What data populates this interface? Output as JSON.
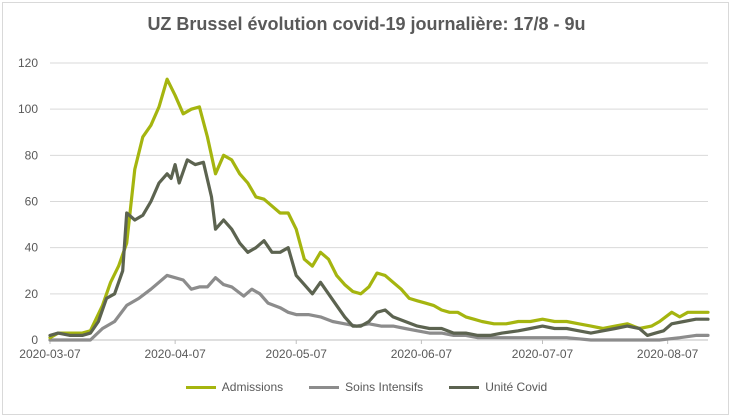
{
  "chart_data": {
    "type": "line",
    "title": "UZ Brussel évolution covid-19 journalière: 17/8 - 9u",
    "xlabel": "",
    "ylabel": "",
    "ylim": [
      0,
      120
    ],
    "yticks": [
      0,
      20,
      40,
      60,
      80,
      100,
      120
    ],
    "xlim": [
      "2020-03-07",
      "2020-08-17"
    ],
    "xtick_labels": [
      "2020-03-07",
      "2020-04-07",
      "2020-05-07",
      "2020-06-07",
      "2020-07-07",
      "2020-08-07"
    ],
    "grid": "horizontal",
    "legend_position": "bottom",
    "series": [
      {
        "name": "Admissions",
        "color": "#a5b50f",
        "points": [
          [
            "2020-03-07",
            1
          ],
          [
            "2020-03-09",
            3
          ],
          [
            "2020-03-12",
            3
          ],
          [
            "2020-03-15",
            3
          ],
          [
            "2020-03-17",
            4
          ],
          [
            "2020-03-20",
            15
          ],
          [
            "2020-03-22",
            25
          ],
          [
            "2020-03-24",
            32
          ],
          [
            "2020-03-26",
            42
          ],
          [
            "2020-03-28",
            74
          ],
          [
            "2020-03-30",
            88
          ],
          [
            "2020-04-01",
            93
          ],
          [
            "2020-04-03",
            101
          ],
          [
            "2020-04-05",
            113
          ],
          [
            "2020-04-07",
            106
          ],
          [
            "2020-04-09",
            98
          ],
          [
            "2020-04-11",
            100
          ],
          [
            "2020-04-13",
            101
          ],
          [
            "2020-04-15",
            88
          ],
          [
            "2020-04-17",
            72
          ],
          [
            "2020-04-19",
            80
          ],
          [
            "2020-04-21",
            78
          ],
          [
            "2020-04-23",
            72
          ],
          [
            "2020-04-25",
            68
          ],
          [
            "2020-04-27",
            62
          ],
          [
            "2020-04-29",
            61
          ],
          [
            "2020-05-01",
            58
          ],
          [
            "2020-05-03",
            55
          ],
          [
            "2020-05-05",
            55
          ],
          [
            "2020-05-07",
            48
          ],
          [
            "2020-05-09",
            35
          ],
          [
            "2020-05-11",
            32
          ],
          [
            "2020-05-13",
            38
          ],
          [
            "2020-05-15",
            35
          ],
          [
            "2020-05-17",
            28
          ],
          [
            "2020-05-19",
            24
          ],
          [
            "2020-05-21",
            21
          ],
          [
            "2020-05-23",
            20
          ],
          [
            "2020-05-25",
            23
          ],
          [
            "2020-05-27",
            29
          ],
          [
            "2020-05-29",
            28
          ],
          [
            "2020-05-31",
            25
          ],
          [
            "2020-06-02",
            22
          ],
          [
            "2020-06-04",
            18
          ],
          [
            "2020-06-06",
            17
          ],
          [
            "2020-06-08",
            16
          ],
          [
            "2020-06-10",
            15
          ],
          [
            "2020-06-12",
            13
          ],
          [
            "2020-06-14",
            12
          ],
          [
            "2020-06-16",
            12
          ],
          [
            "2020-06-18",
            10
          ],
          [
            "2020-06-20",
            9
          ],
          [
            "2020-06-22",
            8
          ],
          [
            "2020-06-25",
            7
          ],
          [
            "2020-06-28",
            7
          ],
          [
            "2020-07-01",
            8
          ],
          [
            "2020-07-04",
            8
          ],
          [
            "2020-07-07",
            9
          ],
          [
            "2020-07-10",
            8
          ],
          [
            "2020-07-13",
            8
          ],
          [
            "2020-07-16",
            7
          ],
          [
            "2020-07-19",
            6
          ],
          [
            "2020-07-22",
            5
          ],
          [
            "2020-07-25",
            6
          ],
          [
            "2020-07-28",
            7
          ],
          [
            "2020-07-31",
            5
          ],
          [
            "2020-08-03",
            6
          ],
          [
            "2020-08-05",
            8
          ],
          [
            "2020-08-08",
            12
          ],
          [
            "2020-08-10",
            10
          ],
          [
            "2020-08-12",
            12
          ],
          [
            "2020-08-17",
            12
          ]
        ]
      },
      {
        "name": "Soins Intensifs",
        "color": "#8c8c8c",
        "points": [
          [
            "2020-03-07",
            0
          ],
          [
            "2020-03-12",
            0
          ],
          [
            "2020-03-17",
            0
          ],
          [
            "2020-03-20",
            5
          ],
          [
            "2020-03-23",
            8
          ],
          [
            "2020-03-26",
            15
          ],
          [
            "2020-03-29",
            18
          ],
          [
            "2020-04-01",
            22
          ],
          [
            "2020-04-03",
            25
          ],
          [
            "2020-04-05",
            28
          ],
          [
            "2020-04-07",
            27
          ],
          [
            "2020-04-09",
            26
          ],
          [
            "2020-04-11",
            22
          ],
          [
            "2020-04-13",
            23
          ],
          [
            "2020-04-15",
            23
          ],
          [
            "2020-04-17",
            27
          ],
          [
            "2020-04-19",
            24
          ],
          [
            "2020-04-21",
            23
          ],
          [
            "2020-04-24",
            19
          ],
          [
            "2020-04-26",
            22
          ],
          [
            "2020-04-28",
            20
          ],
          [
            "2020-04-30",
            16
          ],
          [
            "2020-05-03",
            14
          ],
          [
            "2020-05-05",
            12
          ],
          [
            "2020-05-07",
            11
          ],
          [
            "2020-05-10",
            11
          ],
          [
            "2020-05-13",
            10
          ],
          [
            "2020-05-16",
            8
          ],
          [
            "2020-05-19",
            7
          ],
          [
            "2020-05-22",
            6
          ],
          [
            "2020-05-25",
            7
          ],
          [
            "2020-05-28",
            6
          ],
          [
            "2020-05-31",
            6
          ],
          [
            "2020-06-03",
            5
          ],
          [
            "2020-06-06",
            4
          ],
          [
            "2020-06-09",
            3
          ],
          [
            "2020-06-12",
            3
          ],
          [
            "2020-06-15",
            2
          ],
          [
            "2020-06-18",
            2
          ],
          [
            "2020-06-21",
            1
          ],
          [
            "2020-06-25",
            1
          ],
          [
            "2020-07-01",
            1
          ],
          [
            "2020-07-07",
            1
          ],
          [
            "2020-07-13",
            1
          ],
          [
            "2020-07-19",
            0
          ],
          [
            "2020-07-25",
            0
          ],
          [
            "2020-07-31",
            0
          ],
          [
            "2020-08-05",
            0
          ],
          [
            "2020-08-10",
            1
          ],
          [
            "2020-08-14",
            2
          ],
          [
            "2020-08-17",
            2
          ]
        ]
      },
      {
        "name": "Unité Covid",
        "color": "#5c6350",
        "points": [
          [
            "2020-03-07",
            2
          ],
          [
            "2020-03-09",
            3
          ],
          [
            "2020-03-12",
            2
          ],
          [
            "2020-03-15",
            2
          ],
          [
            "2020-03-17",
            3
          ],
          [
            "2020-03-19",
            8
          ],
          [
            "2020-03-21",
            18
          ],
          [
            "2020-03-23",
            20
          ],
          [
            "2020-03-25",
            30
          ],
          [
            "2020-03-26",
            55
          ],
          [
            "2020-03-28",
            52
          ],
          [
            "2020-03-30",
            54
          ],
          [
            "2020-04-01",
            60
          ],
          [
            "2020-04-03",
            68
          ],
          [
            "2020-04-05",
            72
          ],
          [
            "2020-04-06",
            70
          ],
          [
            "2020-04-07",
            76
          ],
          [
            "2020-04-08",
            68
          ],
          [
            "2020-04-10",
            78
          ],
          [
            "2020-04-12",
            76
          ],
          [
            "2020-04-14",
            77
          ],
          [
            "2020-04-16",
            62
          ],
          [
            "2020-04-17",
            48
          ],
          [
            "2020-04-19",
            52
          ],
          [
            "2020-04-21",
            48
          ],
          [
            "2020-04-23",
            42
          ],
          [
            "2020-04-25",
            38
          ],
          [
            "2020-04-27",
            40
          ],
          [
            "2020-04-29",
            43
          ],
          [
            "2020-05-01",
            38
          ],
          [
            "2020-05-03",
            38
          ],
          [
            "2020-05-05",
            40
          ],
          [
            "2020-05-07",
            28
          ],
          [
            "2020-05-09",
            24
          ],
          [
            "2020-05-11",
            20
          ],
          [
            "2020-05-13",
            25
          ],
          [
            "2020-05-15",
            20
          ],
          [
            "2020-05-17",
            15
          ],
          [
            "2020-05-19",
            10
          ],
          [
            "2020-05-21",
            6
          ],
          [
            "2020-05-23",
            6
          ],
          [
            "2020-05-25",
            8
          ],
          [
            "2020-05-27",
            12
          ],
          [
            "2020-05-29",
            13
          ],
          [
            "2020-05-31",
            10
          ],
          [
            "2020-06-03",
            8
          ],
          [
            "2020-06-06",
            6
          ],
          [
            "2020-06-09",
            5
          ],
          [
            "2020-06-12",
            5
          ],
          [
            "2020-06-15",
            3
          ],
          [
            "2020-06-18",
            3
          ],
          [
            "2020-06-21",
            2
          ],
          [
            "2020-06-24",
            2
          ],
          [
            "2020-06-27",
            3
          ],
          [
            "2020-07-01",
            4
          ],
          [
            "2020-07-04",
            5
          ],
          [
            "2020-07-07",
            6
          ],
          [
            "2020-07-10",
            5
          ],
          [
            "2020-07-13",
            5
          ],
          [
            "2020-07-16",
            4
          ],
          [
            "2020-07-19",
            3
          ],
          [
            "2020-07-22",
            4
          ],
          [
            "2020-07-25",
            5
          ],
          [
            "2020-07-28",
            6
          ],
          [
            "2020-07-31",
            5
          ],
          [
            "2020-08-02",
            2
          ],
          [
            "2020-08-04",
            3
          ],
          [
            "2020-08-06",
            4
          ],
          [
            "2020-08-08",
            7
          ],
          [
            "2020-08-11",
            8
          ],
          [
            "2020-08-14",
            9
          ],
          [
            "2020-08-17",
            9
          ]
        ]
      }
    ]
  }
}
